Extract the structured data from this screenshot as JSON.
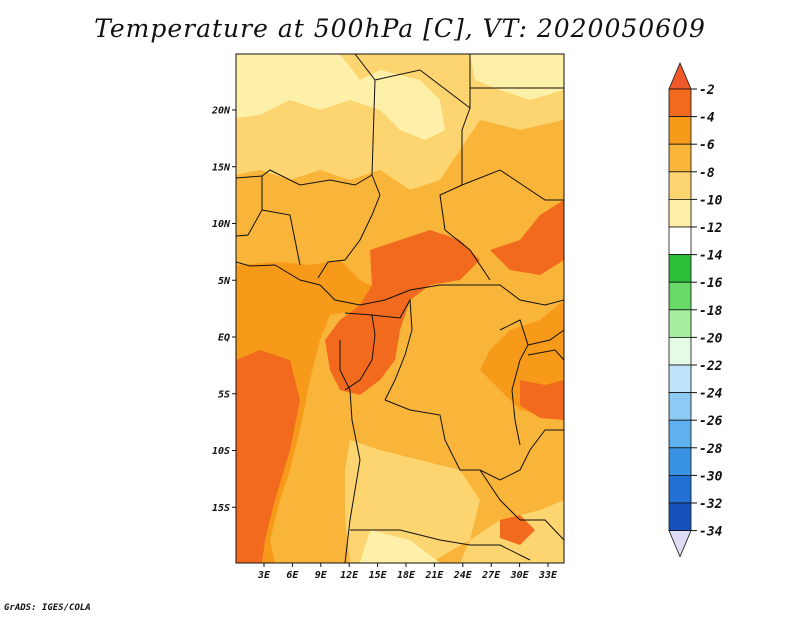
{
  "title": "Temperature at 500hPa [C], VT: 2020050609",
  "footer": "GrADS: IGES/COLA",
  "map": {
    "lat_labels": [
      "20N",
      "15N",
      "10N",
      "5N",
      "EQ",
      "5S",
      "10S",
      "15S"
    ],
    "lon_labels": [
      "3E",
      "6E",
      "9E",
      "12E",
      "15E",
      "18E",
      "21E",
      "24E",
      "27E",
      "30E",
      "33E"
    ]
  },
  "colorbar": {
    "levels": [
      "-2",
      "-4",
      "-6",
      "-8",
      "-10",
      "-12",
      "-14",
      "-16",
      "-18",
      "-20",
      "-22",
      "-24",
      "-26",
      "-28",
      "-30",
      "-32",
      "-34"
    ],
    "colors": {
      "top_arrow": "#f05a2a",
      "bins": [
        "#f26a1e",
        "#f79a1a",
        "#f9b43a",
        "#fcd470",
        "#fef0a8",
        "#ffffff",
        "#2ebf3a",
        "#66d966",
        "#a6eda0",
        "#e6fbe6",
        "#bfe3f8",
        "#8ecbf4",
        "#5eb0ee",
        "#3a92e4",
        "#2270d4",
        "#1651bb",
        "#0c2f9a"
      ],
      "bottom_arrow": "#101866",
      "bottom_tip": "#dcdcf4"
    }
  },
  "field_colors": {
    "m2": "#f26a1e",
    "m4": "#f79a1a",
    "m6": "#f9b43a",
    "m8": "#fcd470",
    "m10": "#fef0a8"
  }
}
